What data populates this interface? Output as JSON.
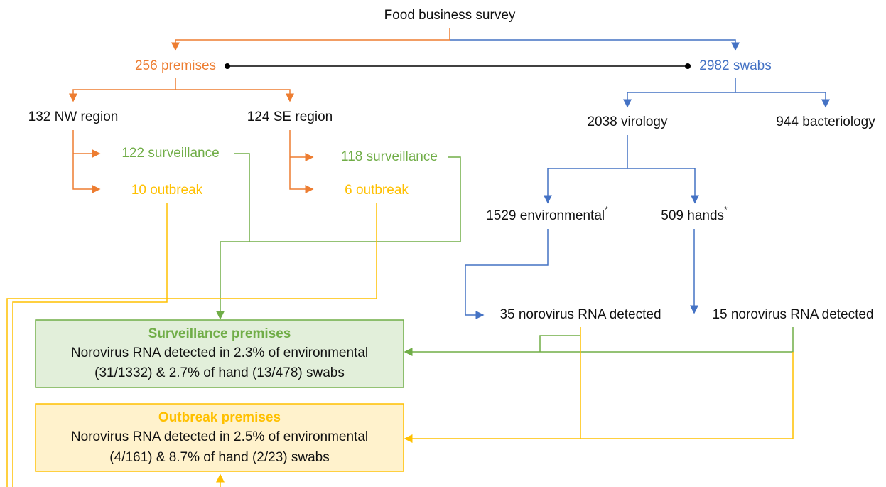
{
  "root": {
    "label": "Food business survey"
  },
  "premises": {
    "label": "256 premises"
  },
  "swabs": {
    "label": "2982 swabs"
  },
  "nw_region": {
    "label": "132 NW region"
  },
  "se_region": {
    "label": "124 SE region"
  },
  "nw_surveillance": {
    "label": "122 surveillance"
  },
  "nw_outbreak": {
    "label": "10 outbreak"
  },
  "se_surveillance": {
    "label": "118 surveillance"
  },
  "se_outbreak": {
    "label": "6 outbreak"
  },
  "virology": {
    "label": "2038 virology"
  },
  "bacteriology": {
    "label": "944 bacteriology"
  },
  "environmental": {
    "label": "1529 environmental",
    "note": "*"
  },
  "hands": {
    "label": "509 hands",
    "note": "*"
  },
  "env_detected": {
    "label": "35 norovirus RNA detected"
  },
  "hands_detected": {
    "label": "15 norovirus RNA detected"
  },
  "surveillance_box": {
    "title": "Surveillance premises",
    "lines": [
      "Norovirus RNA detected in 2.3% of environmental",
      "(31/1332) & 2.7% of hand (13/478) swabs"
    ]
  },
  "outbreak_box": {
    "title": "Outbreak premises",
    "lines": [
      "Norovirus RNA detected in 2.5% of environmental",
      "(4/161) & 8.7% of hand (2/23) swabs"
    ]
  }
}
